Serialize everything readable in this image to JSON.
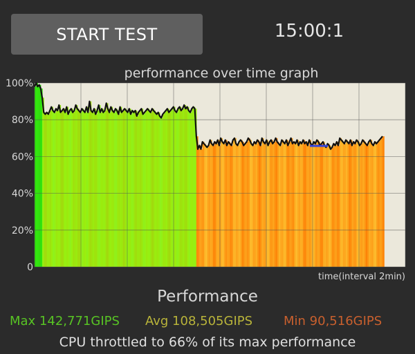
{
  "header": {
    "start_button_label": "START TEST",
    "timer": "15:00:1"
  },
  "chart_data": {
    "type": "line",
    "title": "performance over time graph",
    "xlabel": "time(interval 2min)",
    "y_ticks": [
      "100%",
      "80%",
      "60%",
      "40%",
      "20%",
      "0"
    ],
    "ylim": [
      0,
      100
    ],
    "grid": true,
    "series": [
      {
        "values": [
          98,
          100,
          98,
          99,
          97,
          92,
          84,
          83,
          84,
          83,
          85,
          87,
          85,
          84,
          86,
          85,
          88,
          84,
          85,
          86,
          84,
          87,
          83,
          85,
          86,
          84,
          85,
          88,
          86,
          85,
          84,
          86,
          85,
          84,
          87,
          84,
          90,
          85,
          84,
          86,
          83,
          85,
          88,
          84,
          86,
          84,
          85,
          89,
          86,
          84,
          87,
          85,
          84,
          86,
          85,
          83,
          87,
          84,
          85,
          86,
          85,
          84,
          86,
          83,
          85,
          84,
          85,
          82,
          84,
          85,
          86,
          83,
          84,
          85,
          86,
          85,
          84,
          86,
          85,
          84,
          83,
          84,
          82,
          81,
          83,
          84,
          85,
          86,
          84,
          85,
          86,
          87,
          85,
          84,
          86,
          87,
          85,
          86,
          88,
          86,
          87,
          85,
          84,
          86,
          87,
          86,
          71,
          64,
          66,
          64,
          68,
          67,
          66,
          65,
          66,
          69,
          67,
          66,
          68,
          67,
          69,
          66,
          70,
          68,
          67,
          69,
          66,
          68,
          67,
          66,
          69,
          70,
          67,
          66,
          68,
          69,
          68,
          66,
          67,
          68,
          70,
          69,
          67,
          66,
          68,
          67,
          69,
          68,
          66,
          70,
          68,
          67,
          69,
          66,
          68,
          69,
          67,
          68,
          70,
          68,
          67,
          66,
          69,
          68,
          67,
          69,
          66,
          68,
          70,
          67,
          68,
          67,
          69,
          66,
          68,
          67,
          69,
          67,
          68,
          66,
          69,
          67,
          66,
          68,
          67,
          69,
          68,
          66,
          67,
          68,
          66,
          65,
          67,
          66,
          64,
          65,
          67,
          66,
          68,
          66,
          70,
          69,
          68,
          67,
          69,
          68,
          67,
          69,
          66,
          68,
          67,
          69,
          68,
          66,
          67,
          69,
          68,
          67,
          66,
          68,
          69,
          67,
          66,
          68,
          67,
          68,
          69,
          70,
          71
        ]
      }
    ]
  },
  "stats": {
    "section_title": "Performance",
    "max": "Max 142,771GIPS",
    "avg": "Avg 108,505GIPS",
    "min": "Min 90,516GIPS",
    "throttle_note": "CPU throttled to 66% of its max performance"
  },
  "colors": {
    "max_color": "#58c424",
    "avg_color": "#b9b43a",
    "min_color": "#c9602e",
    "plot_bg": "#ebe8db",
    "avg_marker": "#3344dd"
  }
}
